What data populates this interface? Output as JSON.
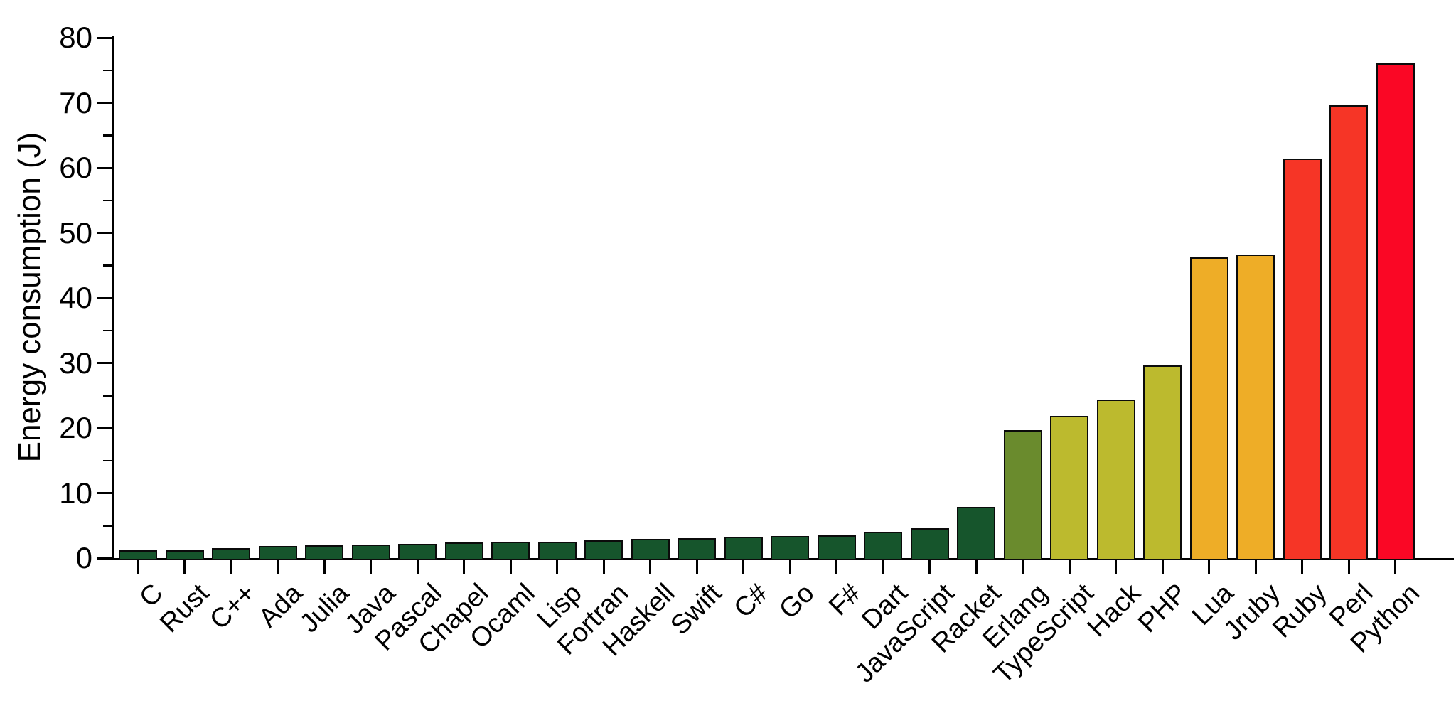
{
  "chart_data": {
    "type": "bar",
    "title": "",
    "xlabel": "",
    "ylabel": "Energy consumption (J)",
    "ylim": [
      0,
      80
    ],
    "y_major_ticks": [
      0,
      10,
      20,
      30,
      40,
      50,
      60,
      70,
      80
    ],
    "y_minor_tick_step": 5,
    "grid": false,
    "legend": "none",
    "categories": [
      "C",
      "Rust",
      "C++",
      "Ada",
      "Julia",
      "Java",
      "Pascal",
      "Chapel",
      "Ocaml",
      "Lisp",
      "Fortran",
      "Haskell",
      "Swift",
      "C#",
      "Go",
      "F#",
      "Dart",
      "JavaScript",
      "Racket",
      "Erlang",
      "TypeScript",
      "Hack",
      "PHP",
      "Lua",
      "Jruby",
      "Ruby",
      "Perl",
      "Python"
    ],
    "values": [
      1.0,
      1.0,
      1.3,
      1.6,
      1.7,
      1.9,
      2.0,
      2.2,
      2.3,
      2.3,
      2.5,
      2.7,
      2.8,
      3.1,
      3.2,
      3.3,
      3.8,
      4.4,
      7.7,
      19.5,
      21.6,
      24.2,
      29.4,
      46.0,
      46.5,
      61.2,
      69.4,
      75.9
    ],
    "bar_colors": [
      "#16552c",
      "#16552c",
      "#16552c",
      "#16552c",
      "#16552c",
      "#16552c",
      "#16552c",
      "#16552c",
      "#16552c",
      "#16552c",
      "#16552c",
      "#16552c",
      "#16552c",
      "#16552c",
      "#16552c",
      "#16552c",
      "#16552c",
      "#16552c",
      "#16552c",
      "#6a8b2d",
      "#bcba2e",
      "#bcba2e",
      "#bcba2e",
      "#eead27",
      "#eead27",
      "#f63526",
      "#f63526",
      "#fa0725"
    ],
    "color_groups": {
      "dark_green": "#16552c",
      "olive_green": "#6a8b2d",
      "yellow_green": "#bcba2e",
      "orange": "#eead27",
      "red_orange": "#f63526",
      "red": "#fa0725"
    },
    "axis_color": "#000000",
    "x_tick_label_rotation_deg": -45
  }
}
